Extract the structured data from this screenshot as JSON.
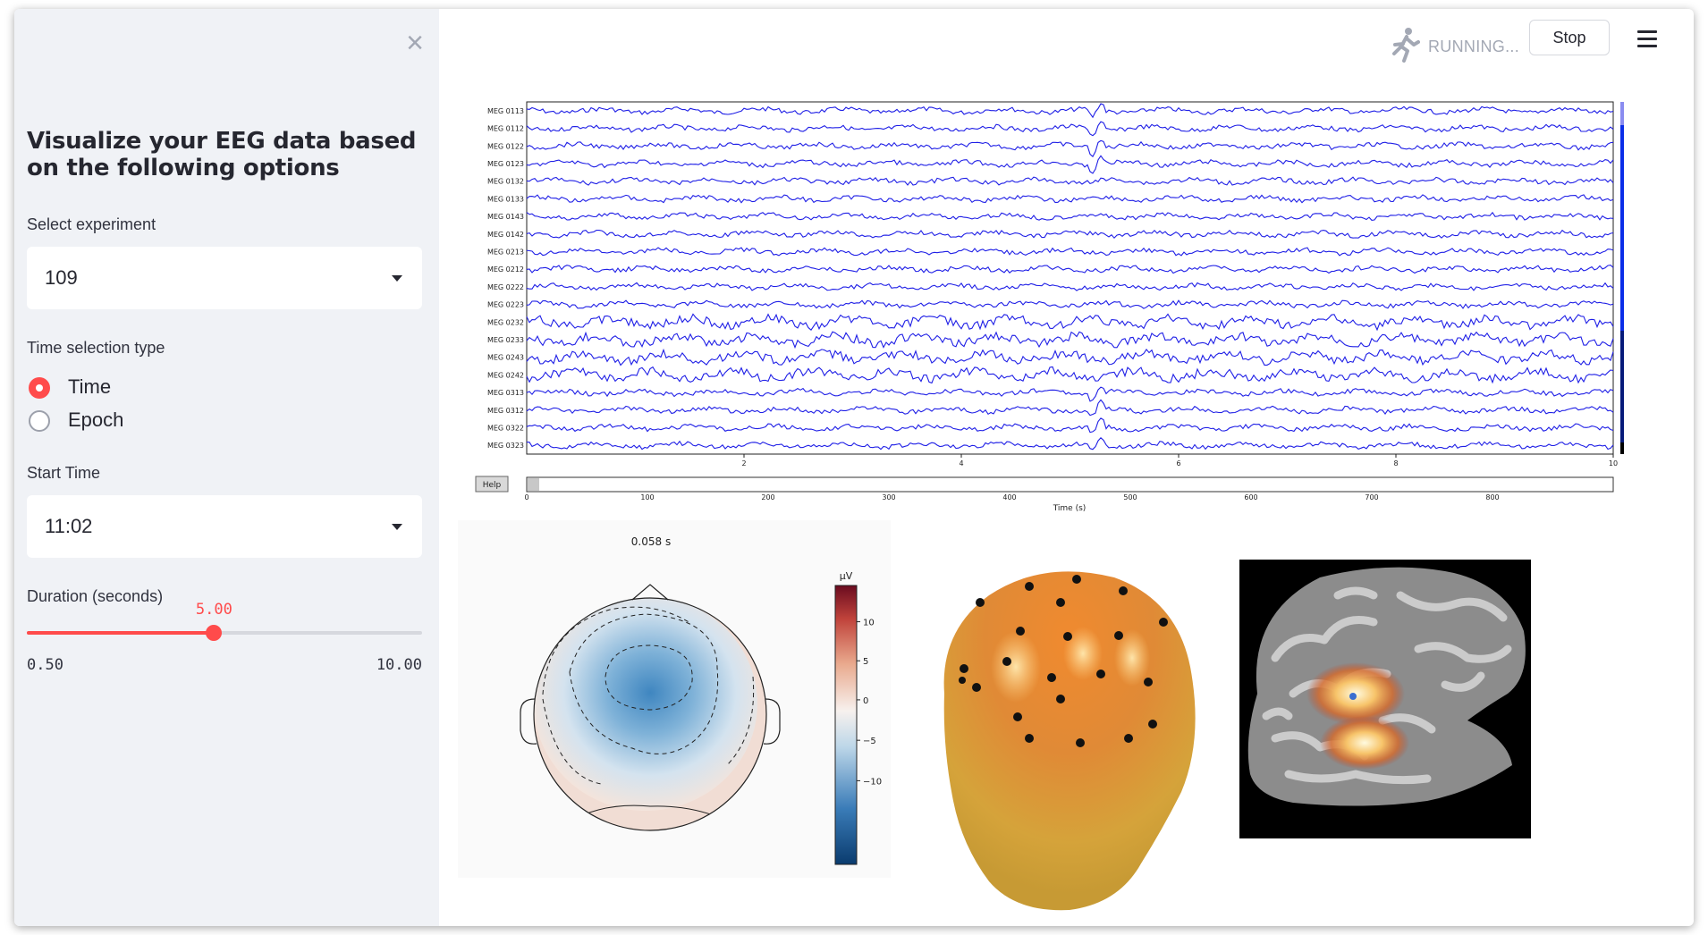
{
  "header": {
    "status_text": "RUNNING...",
    "stop_label": "Stop",
    "running_icon": "running-person-icon",
    "menu_icon": "hamburger-menu-icon"
  },
  "sidebar": {
    "close_icon": "close-icon",
    "title": "Visualize your EEG data based on the following options",
    "experiment": {
      "label": "Select experiment",
      "value": "109"
    },
    "time_selection": {
      "label": "Time selection type",
      "options": [
        "Time",
        "Epoch"
      ],
      "selected": "Time"
    },
    "start_time": {
      "label": "Start Time",
      "value": "11:02"
    },
    "duration": {
      "label": "Duration (seconds)",
      "value": "5.00",
      "min": "0.50",
      "max": "10.00"
    }
  },
  "eeg_plot": {
    "channels": [
      "MEG 0113",
      "MEG 0112",
      "MEG 0122",
      "MEG 0123",
      "MEG 0132",
      "MEG 0133",
      "MEG 0143",
      "MEG 0142",
      "MEG 0213",
      "MEG 0212",
      "MEG 0222",
      "MEG 0223",
      "MEG 0232",
      "MEG 0233",
      "MEG 0243",
      "MEG 0242",
      "MEG 0313",
      "MEG 0312",
      "MEG 0322",
      "MEG 0323"
    ],
    "time_ticks": [
      "2",
      "4",
      "6",
      "8",
      "10"
    ],
    "help_label": "Help",
    "scroll_ticks": [
      "0",
      "100",
      "200",
      "300",
      "400",
      "500",
      "600",
      "700",
      "800"
    ],
    "xlabel": "Time (s)",
    "trace_color": "#1f1fe6"
  },
  "topomap": {
    "title": "0.058 s",
    "unit": "µV",
    "colorbar_ticks": [
      "10",
      "5",
      "0",
      "−5",
      "−10"
    ]
  },
  "chart_data": {
    "type": "line",
    "title": "",
    "xlabel": "Time (s)",
    "ylabel": "",
    "xlim": [
      0,
      10
    ],
    "series_names": [
      "MEG 0113",
      "MEG 0112",
      "MEG 0122",
      "MEG 0123",
      "MEG 0132",
      "MEG 0133",
      "MEG 0143",
      "MEG 0142",
      "MEG 0213",
      "MEG 0212",
      "MEG 0222",
      "MEG 0223",
      "MEG 0232",
      "MEG 0233",
      "MEG 0243",
      "MEG 0242",
      "MEG 0313",
      "MEG 0312",
      "MEG 0322",
      "MEG 0323"
    ]
  },
  "colors": {
    "accent": "#ff4b4b",
    "sidebar_bg": "#f0f2f6",
    "trace": "#1f1fe6"
  }
}
